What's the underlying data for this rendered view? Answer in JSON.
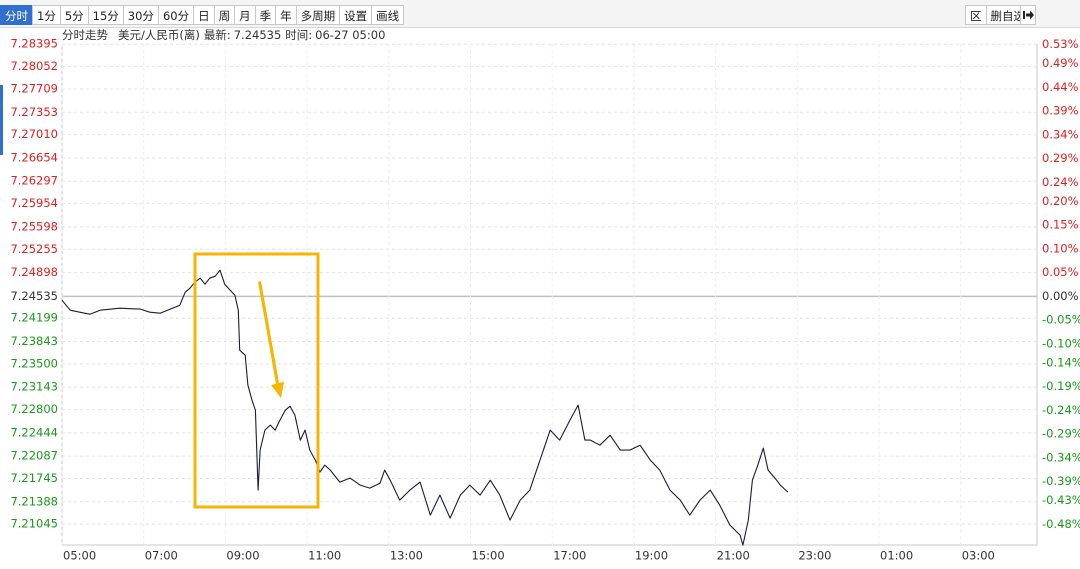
{
  "toolbar": {
    "left": [
      "分时",
      "1分",
      "5分",
      "15分",
      "30分",
      "60分",
      "日",
      "周",
      "月",
      "季",
      "年",
      "多周期",
      "设置",
      "画线"
    ],
    "right": [
      "区",
      "删自选"
    ]
  },
  "header": {
    "title": "分时走势",
    "name": "美元/人民币(离)",
    "latest_label": "最新:",
    "latest": 7.24535,
    "time_label": "时间:",
    "time": "06-27 05:00"
  },
  "chart_data": {
    "type": "line",
    "color": "#1c1c3c",
    "grid": true,
    "xlim": [
      "05:00",
      "04:52"
    ],
    "xticks": [
      "05:00",
      "07:00",
      "09:00",
      "11:00",
      "13:00",
      "15:00",
      "17:00",
      "19:00",
      "21:00",
      "23:00",
      "01:00",
      "03:00"
    ],
    "ylim": [
      7.2068,
      7.2846
    ],
    "yticks": [
      7.28395,
      7.28052,
      7.27709,
      7.27353,
      {
        "value": 7.2701,
        "label": "7.27010"
      },
      7.26654,
      7.26297,
      7.25954,
      7.25598,
      7.25255,
      7.24898,
      7.24535,
      7.24199,
      7.23843,
      {
        "value": 7.235,
        "label": "7.23500"
      },
      7.23143,
      {
        "value": 7.228,
        "label": "7.22800"
      },
      7.22444,
      7.22087,
      7.21745,
      7.21388,
      7.21045
    ],
    "y2lim": [
      -0.53,
      0.54
    ],
    "y2ticks": [
      {
        "value": 0.53,
        "label": "0.53%"
      },
      {
        "value": 0.49,
        "label": "0.49%"
      },
      {
        "value": 0.44,
        "label": "0.44%"
      },
      {
        "value": 0.39,
        "label": "0.39%"
      },
      {
        "value": 0.34,
        "label": "0.34%"
      },
      {
        "value": 0.29,
        "label": "0.29%"
      },
      {
        "value": 0.24,
        "label": "0.24%"
      },
      {
        "value": 0.2,
        "label": "0.20%"
      },
      {
        "value": 0.15,
        "label": "0.15%"
      },
      {
        "value": 0.1,
        "label": "0.10%"
      },
      {
        "value": 0.05,
        "label": "0.05%"
      },
      {
        "value": 0,
        "label": "0.00%"
      },
      {
        "value": -0.05,
        "label": "-0.05%"
      },
      {
        "value": -0.1,
        "label": "-0.10%"
      },
      {
        "value": -0.14,
        "label": "-0.14%"
      },
      {
        "value": -0.19,
        "label": "-0.19%"
      },
      {
        "value": -0.24,
        "label": "-0.24%"
      },
      {
        "value": -0.29,
        "label": "-0.29%"
      },
      {
        "value": -0.34,
        "label": "-0.34%"
      },
      {
        "value": -0.39,
        "label": "-0.39%"
      },
      {
        "value": -0.43,
        "label": "-0.43%"
      },
      {
        "value": -0.48,
        "label": "-0.48%"
      }
    ],
    "x": [
      "05:00",
      "05:12",
      "05:26",
      "05:41",
      "05:56",
      "06:25",
      "06:55",
      "07:09",
      "07:24",
      "07:39",
      "07:53",
      "08:01",
      "08:08",
      "08:15",
      "08:23",
      "08:30",
      "08:37",
      "08:45",
      "08:52",
      "08:59",
      "09:07",
      "09:14",
      "09:19",
      "09:21",
      "09:29",
      "09:33",
      "09:39",
      "09:44",
      "09:48",
      "09:51",
      "09:58",
      "10:06",
      "10:13",
      "10:20",
      "10:28",
      "10:35",
      "10:42",
      "10:50",
      "10:57",
      "11:04",
      "11:12",
      "11:19",
      "11:26",
      "11:34",
      "11:48",
      "12:03",
      "12:18",
      "12:32",
      "12:47",
      "12:54",
      "13:02",
      "13:16",
      "13:31",
      "13:46",
      "14:01",
      "14:15",
      "14:30",
      "14:45",
      "14:59",
      "15:14",
      "15:29",
      "15:43",
      "15:58",
      "16:13",
      "16:27",
      "16:42",
      "16:57",
      "17:11",
      "17:26",
      "17:38",
      "17:48",
      "17:56",
      "18:10",
      "18:25",
      "18:40",
      "18:54",
      "19:09",
      "19:24",
      "19:38",
      "19:53",
      "20:08",
      "20:22",
      "20:37",
      "20:52",
      "21:06",
      "21:21",
      "21:36",
      "21:40",
      "21:48",
      "21:54",
      "22:02",
      "22:10",
      "22:17",
      "22:27",
      "22:35",
      "22:46"
    ],
    "values": [
      7.24475,
      7.24322,
      7.24292,
      7.24261,
      7.24322,
      7.24353,
      7.24338,
      7.24292,
      7.24276,
      7.24338,
      7.24399,
      7.24598,
      7.24659,
      7.24751,
      7.24812,
      7.2472,
      7.24812,
      7.24843,
      7.24935,
      7.2472,
      7.24628,
      7.24552,
      7.24322,
      7.2371,
      7.23633,
      7.23174,
      7.22944,
      7.22791,
      7.21566,
      7.22179,
      7.22485,
      7.22562,
      7.22485,
      7.22638,
      7.22791,
      7.22852,
      7.22715,
      7.22332,
      7.22485,
      7.22179,
      7.22026,
      7.21842,
      7.21949,
      7.21873,
      7.21689,
      7.2175,
      7.21643,
      7.21597,
      7.21673,
      7.21873,
      7.21719,
      7.21413,
      7.21566,
      7.21689,
      7.21184,
      7.2149,
      7.21138,
      7.2149,
      7.21643,
      7.2149,
      7.21719,
      7.2149,
      7.21107,
      7.21413,
      7.21566,
      7.22026,
      7.22485,
      7.22332,
      7.22638,
      7.22868,
      7.22332,
      7.22332,
      7.22255,
      7.22408,
      7.22179,
      7.22179,
      7.22255,
      7.22026,
      7.21873,
      7.21566,
      7.21413,
      7.21184,
      7.21413,
      7.21566,
      7.21337,
      7.2103,
      7.20877,
      7.20724,
      7.21107,
      7.21719,
      7.21949,
      7.22209,
      7.21873,
      7.2175,
      7.21643,
      7.21536
    ]
  }
}
